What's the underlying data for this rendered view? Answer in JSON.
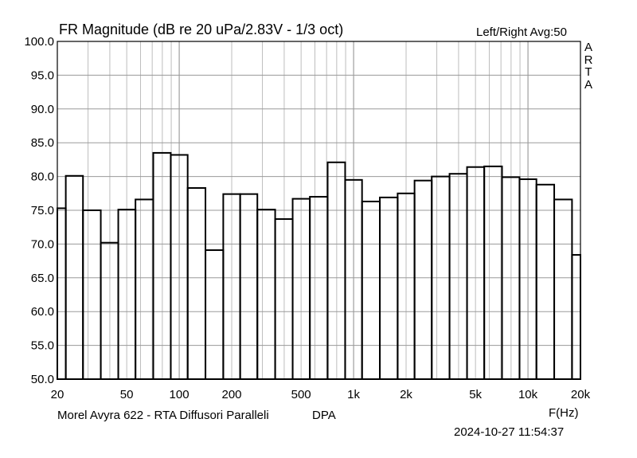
{
  "chart_data": {
    "type": "bar",
    "title": "FR Magnitude (dB re 20 uPa/2.83V - 1/3 oct)",
    "legend_text": "Left/Right  Avg:50",
    "side_label": [
      "A",
      "R",
      "T",
      "A"
    ],
    "caption": "Morel Avyra 622 - RTA Diffusori Paralleli",
    "caption_mode": "DPA",
    "xlabel": "F(Hz)",
    "timestamp": "2024-10-27  11:54:37",
    "xscale": "log",
    "xlim": [
      20,
      20000
    ],
    "ylim": [
      50,
      100
    ],
    "grid": true,
    "y_ticks": [
      "50.0",
      "55.0",
      "60.0",
      "65.0",
      "70.0",
      "75.0",
      "80.0",
      "85.0",
      "90.0",
      "95.0",
      "100.0"
    ],
    "x_ticks": [
      {
        "value": 20,
        "label": "20"
      },
      {
        "value": 50,
        "label": "50"
      },
      {
        "value": 100,
        "label": "100"
      },
      {
        "value": 200,
        "label": "200"
      },
      {
        "value": 500,
        "label": "500"
      },
      {
        "value": 1000,
        "label": "1k"
      },
      {
        "value": 2000,
        "label": "2k"
      },
      {
        "value": 5000,
        "label": "5k"
      },
      {
        "value": 10000,
        "label": "10k"
      },
      {
        "value": 20000,
        "label": "20k"
      }
    ],
    "categories": [
      20,
      25,
      31.5,
      40,
      50,
      63,
      80,
      100,
      125,
      160,
      200,
      250,
      315,
      400,
      500,
      630,
      800,
      1000,
      1250,
      1600,
      2000,
      2500,
      3150,
      4000,
      5000,
      6300,
      8000,
      10000,
      12500,
      16000,
      20000
    ],
    "values": [
      75.3,
      80.1,
      75.0,
      70.2,
      75.1,
      76.6,
      83.5,
      83.2,
      78.3,
      69.1,
      77.4,
      77.4,
      75.1,
      73.7,
      76.7,
      77.0,
      82.1,
      79.5,
      76.3,
      76.9,
      77.5,
      79.4,
      80.0,
      80.4,
      81.4,
      81.5,
      79.9,
      79.6,
      78.8,
      76.6,
      68.4
    ]
  }
}
